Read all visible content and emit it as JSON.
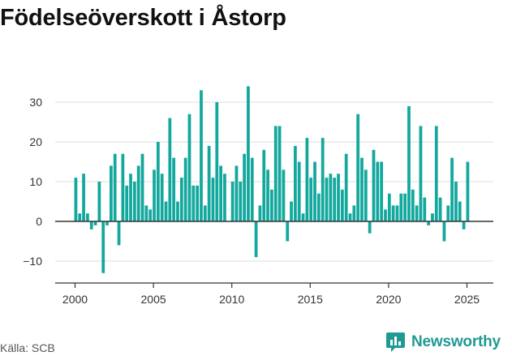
{
  "title": "Födelseöverskott i Åstorp",
  "source": "Källa: SCB",
  "brand": {
    "name": "Newsworthy",
    "icon": "newsworthy-logo-icon"
  },
  "colors": {
    "bar": "#13a89e",
    "grid": "#dddddd",
    "axis": "#333333",
    "text": "#333333",
    "brand": "#1f9a92"
  },
  "chart_data": {
    "type": "bar",
    "title": "Födelseöverskott i Åstorp",
    "xlabel": "",
    "ylabel": "",
    "x_ticks": [
      "2000",
      "2005",
      "2010",
      "2015",
      "2020",
      "2025"
    ],
    "y_ticks": [
      -10,
      0,
      10,
      20,
      30
    ],
    "ylim": [
      -15,
      35
    ],
    "xlim": [
      2000,
      2026
    ],
    "grid": true,
    "series": [
      {
        "start": 2000,
        "step": 0.25,
        "values": [
          11,
          2,
          12,
          2,
          -2,
          -1,
          10,
          -13,
          -1,
          14,
          17,
          -6,
          17,
          9,
          12,
          10,
          14,
          17,
          4,
          3,
          13,
          20,
          12,
          5,
          26,
          16,
          5,
          11,
          16,
          27,
          9,
          9,
          33,
          4,
          19,
          11,
          30,
          14,
          12,
          0,
          10,
          14,
          10,
          17,
          34,
          16,
          -9,
          4,
          18,
          13,
          8,
          24,
          24,
          13,
          -5,
          5,
          19,
          15,
          2,
          21,
          11,
          15,
          7,
          21,
          11,
          12,
          11,
          12,
          8,
          17,
          2,
          4,
          27,
          16,
          13,
          -3,
          18,
          15,
          15,
          3,
          7,
          4,
          4,
          7,
          7,
          29,
          8,
          4,
          24,
          6,
          -1,
          2,
          24,
          6,
          -5,
          4,
          16,
          10,
          5,
          -2,
          15
        ]
      }
    ]
  }
}
